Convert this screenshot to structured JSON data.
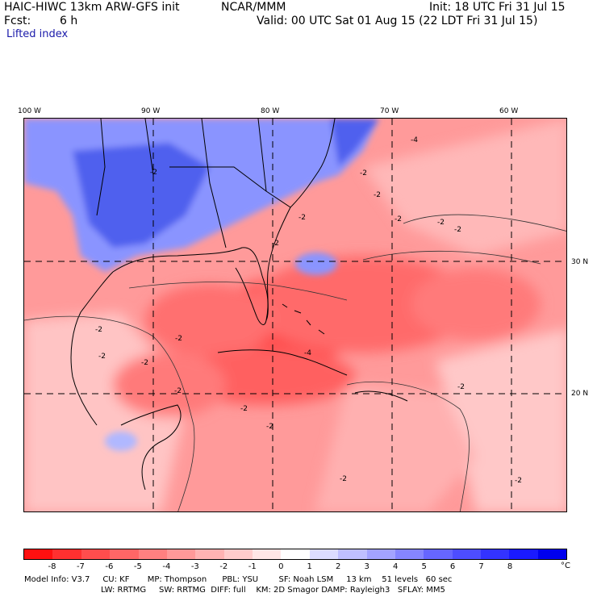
{
  "header": {
    "title": "HAIC-HIWC 13km ARW-GFS init",
    "center": "NCAR/MMM",
    "init": "Init: 18 UTC Fri 31 Jul 15",
    "fcst_label": "Fcst:",
    "fcst_value": "6 h",
    "valid": "Valid: 00 UTC Sat 01 Aug 15 (22 LDT Fri 31 Jul 15)",
    "field": "Lifted index"
  },
  "axes": {
    "lon_labels": [
      "100 W",
      "90 W",
      "80 W",
      "70 W",
      "60 W"
    ],
    "lat_labels": [
      "30 N",
      "20 N"
    ]
  },
  "contour_labels": [
    "-4",
    "-2",
    "-2",
    "-2",
    "-2",
    "-2",
    "-2",
    "-2",
    "-2",
    "-2",
    "-2",
    "-4",
    "-2",
    "-2",
    "-2",
    "-2",
    "-2",
    "-2",
    "-2",
    "-2"
  ],
  "colorbar": {
    "unit": "°C",
    "ticks": [
      "-8",
      "-7",
      "-6",
      "-5",
      "-4",
      "-3",
      "-2",
      "-1",
      "0",
      "1",
      "2",
      "3",
      "4",
      "5",
      "6",
      "7",
      "8"
    ],
    "colors": [
      "#ff1010",
      "#ff3030",
      "#ff4d4d",
      "#ff6666",
      "#ff8080",
      "#ff9999",
      "#ffb3b3",
      "#ffcccc",
      "#ffe6e6",
      "#ffffff",
      "#dcdcff",
      "#bfbfff",
      "#a3a3ff",
      "#8585ff",
      "#6666ff",
      "#4d4dff",
      "#3333ff",
      "#1a1aff",
      "#0000ee"
    ]
  },
  "footer": {
    "line1": "Model Info: V3.7     CU: KF       MP: Thompson      PBL: YSU        SF: Noah LSM     13 km    51 levels   60 sec",
    "line2": "LW: RRTMG     SW: RRTMG  DIFF: full    KM: 2D Smagor DAMP: Rayleigh3   SFLAY: MM5"
  },
  "colors": {
    "unstable_strong": "#ff4a4a",
    "unstable": "#ff8a8a",
    "unstable_weak": "#ffc4c4",
    "stable": "#7c86ff",
    "stable_strong": "#4452ee"
  }
}
